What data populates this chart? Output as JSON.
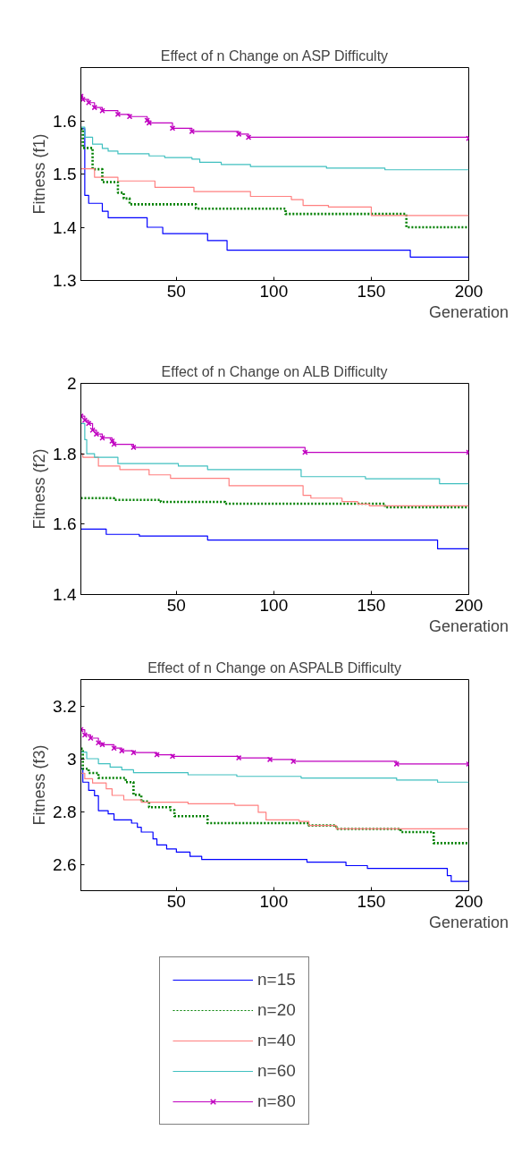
{
  "chart_data": [
    {
      "type": "step",
      "title": "Effect of n Change on ASP Difficulty",
      "xlabel": "Generation",
      "ylabel": "Fitness (f1)",
      "xlim": [
        1,
        200
      ],
      "xticks": [
        50,
        100,
        150,
        200
      ],
      "ylim": [
        1.3,
        1.7
      ],
      "yticks": [
        1.3,
        1.4,
        1.5,
        1.6
      ],
      "grid": false,
      "legend": false,
      "series": [
        {
          "color": "#0000ff",
          "x": [
            1,
            3,
            5,
            12,
            15,
            35,
            43,
            66,
            76,
            170,
            200
          ],
          "values": [
            1.585,
            1.46,
            1.445,
            1.43,
            1.418,
            1.4,
            1.388,
            1.375,
            1.357,
            1.344,
            1.344
          ]
        },
        {
          "color": "#008000",
          "line_style": "dotted",
          "x": [
            1,
            2,
            7,
            12,
            20,
            23,
            26,
            60,
            106,
            168,
            200
          ],
          "values": [
            1.585,
            1.549,
            1.509,
            1.485,
            1.465,
            1.454,
            1.443,
            1.435,
            1.425,
            1.4,
            1.4
          ]
        },
        {
          "color": "#ff8080",
          "x": [
            1,
            8,
            20,
            39,
            59,
            88,
            109,
            115,
            128,
            150,
            200
          ],
          "values": [
            1.51,
            1.494,
            1.487,
            1.475,
            1.467,
            1.458,
            1.452,
            1.441,
            1.438,
            1.422,
            1.422
          ]
        },
        {
          "color": "#40c0c0",
          "x": [
            1,
            3,
            7,
            12,
            15,
            20,
            36,
            44,
            58,
            62,
            73,
            88,
            127,
            157,
            200
          ],
          "values": [
            1.588,
            1.569,
            1.556,
            1.548,
            1.543,
            1.538,
            1.534,
            1.531,
            1.528,
            1.522,
            1.518,
            1.514,
            1.511,
            1.508,
            1.508
          ]
        },
        {
          "color": "#c000c0",
          "marker": "cross",
          "x": [
            1,
            2,
            5,
            8,
            12,
            20,
            26,
            35,
            36,
            48,
            58,
            82,
            87,
            200
          ],
          "values": [
            1.646,
            1.64,
            1.634,
            1.625,
            1.619,
            1.612,
            1.608,
            1.601,
            1.596,
            1.586,
            1.58,
            1.575,
            1.569,
            1.567
          ]
        }
      ]
    },
    {
      "type": "step",
      "title": "Effect of n Change on ALB Difficulty",
      "xlabel": "Generation",
      "ylabel": "Fitness (f2)",
      "xlim": [
        1,
        200
      ],
      "xticks": [
        50,
        100,
        150,
        200
      ],
      "ylim": [
        1.4,
        2.0
      ],
      "yticks": [
        1.4,
        1.6,
        1.8,
        2
      ],
      "grid": false,
      "legend": false,
      "series": [
        {
          "color": "#0000ff",
          "x": [
            1,
            14,
            31,
            66,
            184,
            200
          ],
          "values": [
            1.586,
            1.571,
            1.566,
            1.555,
            1.53,
            1.53
          ]
        },
        {
          "color": "#008000",
          "line_style": "dotted",
          "x": [
            1,
            18,
            42,
            75,
            157,
            200
          ],
          "values": [
            1.674,
            1.669,
            1.663,
            1.658,
            1.648,
            1.648
          ]
        },
        {
          "color": "#ff8080",
          "x": [
            1,
            2,
            10,
            21,
            36,
            47,
            77,
            115,
            119,
            135,
            143,
            149,
            200
          ],
          "values": [
            1.8,
            1.79,
            1.765,
            1.755,
            1.74,
            1.73,
            1.709,
            1.682,
            1.674,
            1.664,
            1.657,
            1.652,
            1.652
          ]
        },
        {
          "color": "#40c0c0",
          "x": [
            1,
            3,
            4,
            8,
            20,
            51,
            66,
            114,
            147,
            185,
            200
          ],
          "values": [
            1.886,
            1.84,
            1.8,
            1.79,
            1.772,
            1.765,
            1.755,
            1.735,
            1.729,
            1.715,
            1.715
          ]
        },
        {
          "color": "#c000c0",
          "marker": "cross",
          "x": [
            1,
            3,
            5,
            7,
            9,
            12,
            17,
            18,
            28,
            116,
            200
          ],
          "values": [
            1.907,
            1.895,
            1.886,
            1.867,
            1.856,
            1.845,
            1.836,
            1.827,
            1.818,
            1.804,
            1.804
          ]
        }
      ]
    },
    {
      "type": "step",
      "title": "Effect of n Change on ASPALB Difficulty",
      "xlabel": "Generation",
      "ylabel": "Fitness (f3)",
      "xlim": [
        1,
        200
      ],
      "xticks": [
        50,
        100,
        150,
        200
      ],
      "ylim": [
        2.5,
        3.3
      ],
      "yticks": [
        2.6,
        2.8,
        3,
        3.2
      ],
      "grid": false,
      "legend": "bottom left",
      "series": [
        {
          "name": "n=15",
          "color": "#0000ff",
          "x": [
            1,
            2,
            5,
            8,
            10,
            15,
            18,
            27,
            30,
            32,
            38,
            40,
            45,
            50,
            57,
            63,
            117,
            137,
            148,
            189,
            191,
            200
          ],
          "values": [
            2.962,
            2.911,
            2.88,
            2.86,
            2.803,
            2.791,
            2.768,
            2.756,
            2.74,
            2.722,
            2.696,
            2.673,
            2.658,
            2.646,
            2.63,
            2.618,
            2.608,
            2.595,
            2.584,
            2.557,
            2.535,
            2.535
          ]
        },
        {
          "name": "n=20",
          "color": "#008000",
          "line_style": "dotted",
          "x": [
            1,
            2,
            5,
            10,
            24,
            28,
            32,
            36,
            47,
            49,
            66,
            118,
            132,
            165,
            182,
            200
          ],
          "values": [
            3.038,
            2.962,
            2.946,
            2.927,
            2.911,
            2.863,
            2.838,
            2.816,
            2.805,
            2.782,
            2.756,
            2.747,
            2.734,
            2.722,
            2.68,
            2.68
          ]
        },
        {
          "name": "n=40",
          "color": "#ff8080",
          "x": [
            1,
            3,
            7,
            14,
            17,
            23,
            32,
            56,
            80,
            92,
            96,
            113,
            118,
            132,
            200
          ],
          "values": [
            2.945,
            2.924,
            2.908,
            2.886,
            2.861,
            2.844,
            2.835,
            2.829,
            2.823,
            2.797,
            2.768,
            2.762,
            2.747,
            2.734,
            2.734
          ]
        },
        {
          "name": "n=60",
          "color": "#40c0c0",
          "x": [
            1,
            4,
            10,
            16,
            22,
            28,
            56,
            81,
            114,
            163,
            184,
            200
          ],
          "values": [
            3.025,
            3.0,
            2.981,
            2.968,
            2.958,
            2.947,
            2.939,
            2.933,
            2.927,
            2.919,
            2.911,
            2.911
          ]
        },
        {
          "name": "n=80",
          "color": "#c000c0",
          "marker": "cross",
          "x": [
            1,
            3,
            6,
            10,
            12,
            18,
            22,
            28,
            40,
            48,
            82,
            98,
            110,
            163,
            200
          ],
          "values": [
            3.11,
            3.09,
            3.078,
            3.06,
            3.053,
            3.04,
            3.03,
            3.023,
            3.015,
            3.009,
            3.003,
            2.997,
            2.99,
            2.98,
            2.98
          ]
        }
      ]
    }
  ]
}
